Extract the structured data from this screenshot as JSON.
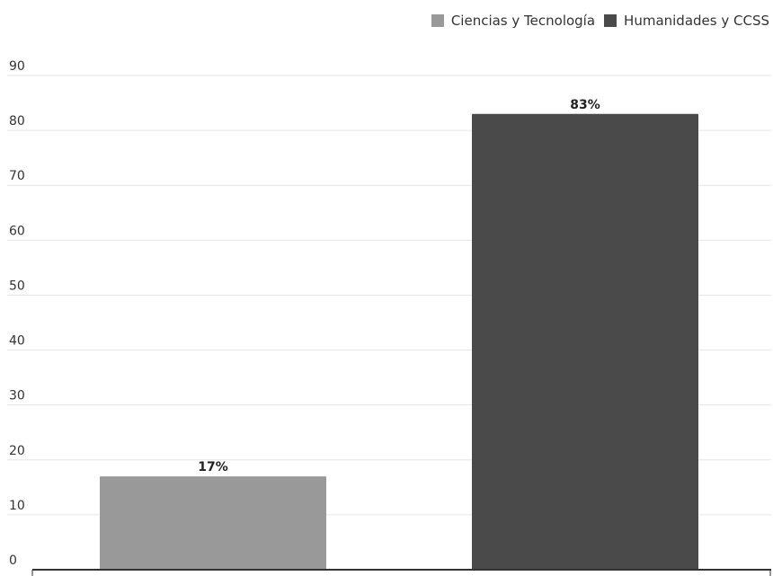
{
  "chart_data": {
    "type": "bar",
    "categories": [
      "Ciencias y Tecnología",
      "Humanidades y CCSS"
    ],
    "values": [
      17,
      83
    ],
    "data_labels": [
      "17%",
      "83%"
    ],
    "colors": [
      "#999999",
      "#4a4a4a"
    ],
    "ylim": [
      0,
      90
    ],
    "yticks": [
      0,
      10,
      20,
      30,
      40,
      50,
      60,
      70,
      80,
      90
    ],
    "grid": true,
    "legend": {
      "position": "top-right",
      "entries": [
        {
          "label": "Ciencias y Tecnología",
          "color": "#999999"
        },
        {
          "label": "Humanidades y CCSS",
          "color": "#4a4a4a"
        }
      ]
    }
  }
}
